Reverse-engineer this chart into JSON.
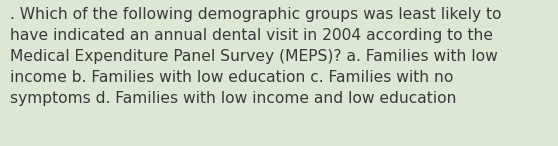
{
  "lines": [
    ". Which of the following demographic groups was least likely to",
    "have indicated an annual dental visit in 2004 according to the",
    "Medical Expenditure Panel Survey (MEPS)? a. Families with low",
    "income b. Families with low education c. Families with no",
    "symptoms d. Families with low income and low education"
  ],
  "background_color": "#dce8d5",
  "text_color": "#3a3a3a",
  "font_size": 11.2,
  "figwidth": 5.58,
  "figheight": 1.46,
  "dpi": 100
}
